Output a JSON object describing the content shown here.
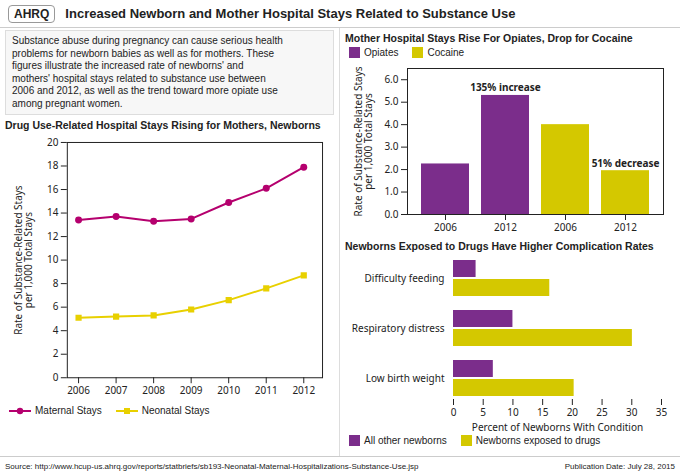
{
  "title": "Increased Newborn and Mother Hospital Stays Related to Substance Use",
  "subtitle": "Substance abuse during pregnancy can cause serious health\nproblems for newborn babies as well as for mothers. These\nfigures illustrate the increased rate of newborns' and\nmothers' hospital stays related to substance use between\n2006 and 2012, as well as the trend toward more opiate use\namong pregnant women.",
  "annotations": [
    "AHRQ",
    "Source: http://www.hcup-us.ahrq.gov/reports/statbriefs/sb193-Neonatal-Maternal-Hospitalizations-Substance-Use.jsp",
    "Publication Date: July 28, 2015"
  ],
  "chart_data": [
    {
      "type": "line",
      "title": "Drug Use-Related Hospital Stays Rising for Mothers, Newborns",
      "ylabel": "Rate of Substance-Related Stays\nper 1,000 Total Stays",
      "x": [
        2006,
        2007,
        2008,
        2009,
        2010,
        2011,
        2012
      ],
      "series": [
        {
          "name": "Maternal Stays",
          "color": "#b5006e",
          "marker": "circle",
          "values": [
            13.4,
            13.7,
            13.3,
            13.5,
            14.9,
            16.1,
            17.9
          ]
        },
        {
          "name": "Neonatal Stays",
          "color": "#e8d000",
          "marker": "square",
          "values": [
            5.1,
            5.2,
            5.3,
            5.8,
            6.6,
            7.6,
            8.7
          ]
        }
      ],
      "xlim": [
        2005.7,
        2012.5
      ],
      "xticks": [
        2006,
        2007,
        2008,
        2009,
        2010,
        2011,
        2012
      ],
      "ylim": [
        0,
        20
      ],
      "yticks": [
        0,
        2,
        4,
        6,
        8,
        10,
        12,
        14,
        16,
        18,
        20
      ]
    },
    {
      "type": "bar",
      "title": "Mother Hospital Stays Rise For Opiates, Drop for Cocaine",
      "ylabel": "Rate of Substance-Related Stays\nper 1,000 Total Stays",
      "categories": [
        "2006",
        "2012",
        "2006",
        "2012"
      ],
      "series": [
        {
          "name": "Opiates",
          "color": "#7b2d8b",
          "values": [
            2.25,
            5.3,
            null,
            null
          ]
        },
        {
          "name": "Cocaine",
          "color": "#d4c800",
          "values": [
            null,
            null,
            4.0,
            1.95
          ]
        }
      ],
      "ylim": [
        0,
        6.5
      ],
      "yticks": [
        0,
        1,
        2,
        3,
        4,
        5,
        6
      ],
      "annotations": [
        "135% increase",
        "51% decrease"
      ]
    },
    {
      "type": "bar",
      "orientation": "horizontal",
      "title": "Newborns Exposed to Drugs Have Higher Complication Rates",
      "xlabel": "Percent of Newborns With Condition",
      "categories": [
        "Difficulty feeding",
        "Respiratory distress",
        "Low birth weight"
      ],
      "series": [
        {
          "name": "All other newborns",
          "color": "#7b2d8b",
          "values": [
            3.8,
            10.0,
            6.7
          ]
        },
        {
          "name": "Newborns exposed to drugs",
          "color": "#d4c800",
          "values": [
            16.2,
            30.1,
            20.3
          ]
        }
      ],
      "xlim": [
        0,
        35
      ],
      "xticks": [
        0,
        5,
        10,
        15,
        20,
        25,
        30,
        35
      ]
    }
  ]
}
